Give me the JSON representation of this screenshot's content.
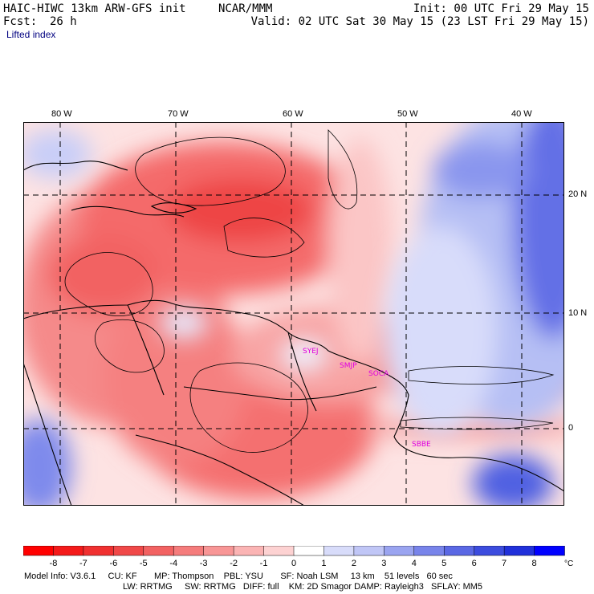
{
  "header": {
    "model": "HAIC-HIWC 13km ARW-GFS init",
    "org": "NCAR/MMM",
    "init": "Init: 00 UTC Fri 29 May 15",
    "fcst_label": "Fcst:",
    "fcst_value": "26 h",
    "valid": "Valid: 02 UTC Sat 30 May 15 (23 LST Fri 29 May 15)",
    "field": "Lifted index"
  },
  "map": {
    "lon_labels": [
      "80 W",
      "70 W",
      "60 W",
      "50 W",
      "40 W"
    ],
    "lat_labels": [
      "20 N",
      "10 N",
      "0"
    ],
    "stations": [
      "SYEJ",
      "SMJP",
      "SOCA",
      "SBBE"
    ],
    "colors": {
      "negative": "#ee2222",
      "positive": "#1a3adf",
      "neutral": "#ffffff",
      "station": "#e000e0"
    }
  },
  "colorbar": {
    "ticks": [
      "-8",
      "-7",
      "-6",
      "-5",
      "-4",
      "-3",
      "-2",
      "-1",
      "0",
      "1",
      "2",
      "3",
      "4",
      "5",
      "6",
      "7",
      "8"
    ],
    "unit": "°C",
    "colors": [
      "#ff0000",
      "#f41a1a",
      "#f03030",
      "#f04848",
      "#f26262",
      "#f57c7c",
      "#f89696",
      "#fbb4b4",
      "#fdd2d2",
      "#ffffff",
      "#d8dcfa",
      "#c0c6f6",
      "#9aa4f0",
      "#7884ea",
      "#5a68e4",
      "#3c4cde",
      "#2030da",
      "#0000ff"
    ]
  },
  "footer": {
    "line1": "Model Info: V3.6.1     CU: KF       MP: Thompson    PBL: YSU       SF: Noah LSM     13 km    51 levels   60 sec",
    "line2": "LW: RRTMG     SW: RRTMG   DIFF: full    KM: 2D Smagor DAMP: Rayleigh3   SFLAY: MM5"
  }
}
